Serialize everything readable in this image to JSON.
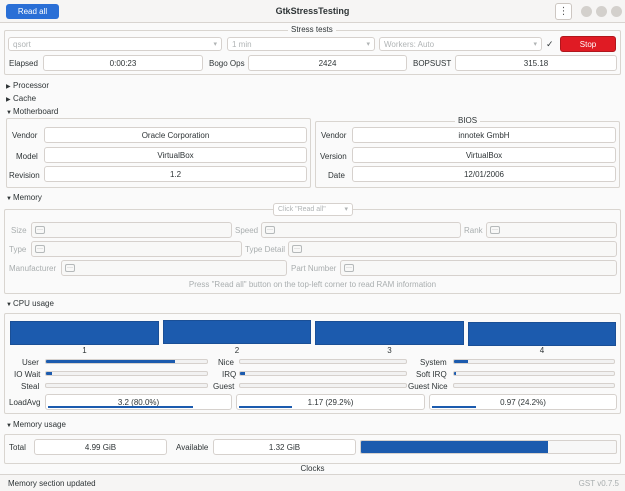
{
  "header": {
    "read_all_label": "Read all",
    "title": "GtkStressTesting",
    "menu_icon": "vertical-dots-icon"
  },
  "stress_tests": {
    "frame_label": "Stress tests",
    "method_value": "qsort",
    "duration_value": "1 min",
    "workers_value": "Workers: Auto",
    "check_mark": "✓",
    "stop_label": "Stop",
    "elapsed_label": "Elapsed",
    "elapsed_value": "0:00:23",
    "bogo_label": "Bogo Ops",
    "bogo_value": "2424",
    "bopsust_label": "BOPSUST",
    "bopsust_value": "315.18"
  },
  "sections": {
    "processor": "Processor",
    "cache": "Cache",
    "motherboard": "Motherboard",
    "memory": "Memory",
    "cpu_usage": "CPU usage",
    "memory_usage": "Memory usage"
  },
  "motherboard": {
    "vendor_label": "Vendor",
    "vendor_value": "Oracle Corporation",
    "model_label": "Model",
    "model_value": "VirtualBox",
    "revision_label": "Revision",
    "revision_value": "1.2"
  },
  "bios": {
    "frame_label": "BIOS",
    "vendor_label": "Vendor",
    "vendor_value": "innotek GmbH",
    "version_label": "Version",
    "version_value": "VirtualBox",
    "date_label": "Date",
    "date_value": "12/01/2006"
  },
  "memory": {
    "dropdown_value": "Click \"Read all\"",
    "size_label": "Size",
    "speed_label": "Speed",
    "rank_label": "Rank",
    "type_label": "Type",
    "type_detail_label": "Type Detail",
    "manufacturer_label": "Manufacturer",
    "part_number_label": "Part Number",
    "placeholder_glyph": "···",
    "hint": "Press \"Read all\" button on the top-left corner to read RAM information"
  },
  "cpu_usage": {
    "cores": [
      {
        "label": "1",
        "usage": 1.0
      },
      {
        "label": "2",
        "usage": 1.0
      },
      {
        "label": "3",
        "usage": 1.0
      },
      {
        "label": "4",
        "usage": 1.0
      }
    ],
    "user_label": "User",
    "user_value": 0.8,
    "nice_label": "Nice",
    "nice_value": 0.0,
    "system_label": "System",
    "system_value": 0.09,
    "iowait_label": "IO Wait",
    "iowait_value": 0.04,
    "irq_label": "IRQ",
    "irq_value": 0.03,
    "softirq_label": "Soft IRQ",
    "softirq_value": 0.01,
    "steal_label": "Steal",
    "steal_value": 0.0,
    "guest_label": "Guest",
    "guest_value": 0.0,
    "guest_nice_label": "Guest Nice",
    "guest_nice_value": 0.0,
    "loadavg_label": "LoadAvg",
    "loadavg": [
      {
        "text": "3.2 (80.0%)",
        "fraction": 0.8
      },
      {
        "text": "1.17 (29.2%)",
        "fraction": 0.292
      },
      {
        "text": "0.97 (24.2%)",
        "fraction": 0.242
      }
    ]
  },
  "memory_usage": {
    "total_label": "Total",
    "total_value": "4.99 GiB",
    "available_label": "Available",
    "available_value": "1.32 GiB",
    "used_fraction": 0.735,
    "clocks_label": "Clocks"
  },
  "status": {
    "message": "Memory section updated",
    "version": "GST v0.7.5"
  },
  "colors": {
    "accent_blue": "#2a6fd6",
    "bar_blue": "#1c5bae",
    "stop_red": "#e01b24"
  }
}
